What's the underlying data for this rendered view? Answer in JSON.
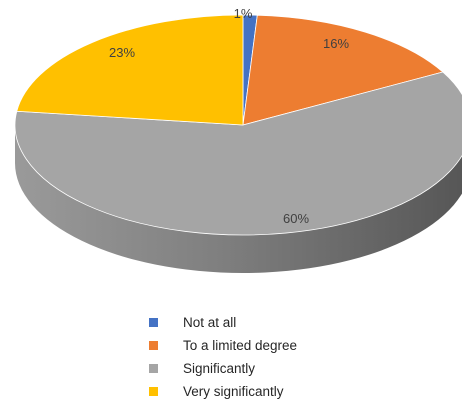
{
  "chart_data": {
    "type": "pie",
    "style": "3d",
    "title": "",
    "categories": [
      "Not at all",
      "To a limited degree",
      "Significantly",
      "Very significantly"
    ],
    "values": [
      1,
      16,
      60,
      23
    ],
    "value_labels": [
      "1%",
      "16%",
      "60%",
      "23%"
    ],
    "colors": [
      "#4472C4",
      "#ED7D31",
      "#A5A5A5",
      "#FFC000"
    ],
    "legend_position": "bottom",
    "grid": false
  }
}
